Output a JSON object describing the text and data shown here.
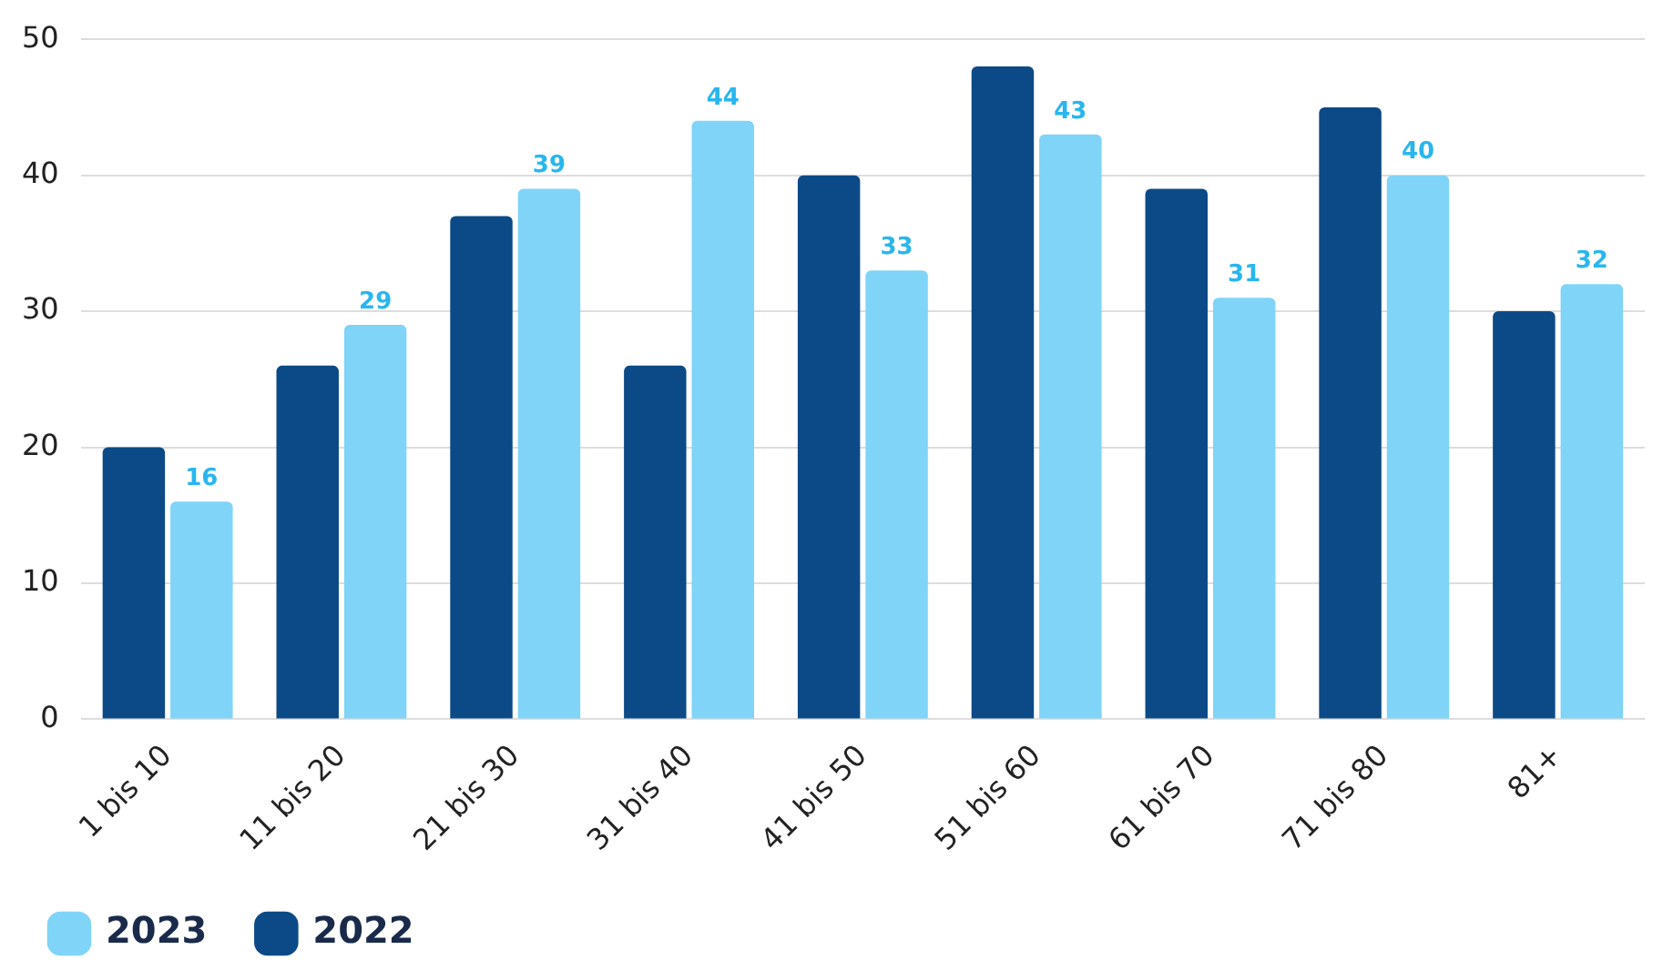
{
  "chart_data": {
    "type": "bar",
    "categories": [
      "1 bis 10",
      "11 bis 20",
      "21 bis 30",
      "31 bis 40",
      "41 bis 50",
      "51 bis 60",
      "61 bis 70",
      "71 bis 80",
      "81+"
    ],
    "series": [
      {
        "name": "2022",
        "color": "#0b4a86",
        "values": [
          20,
          26,
          37,
          26,
          40,
          48,
          39,
          45,
          30
        ]
      },
      {
        "name": "2023",
        "color": "#7fd4f8",
        "values": [
          16,
          29,
          39,
          44,
          33,
          43,
          31,
          40,
          32
        ],
        "value_labels": [
          "16",
          "29",
          "39",
          "44",
          "33",
          "43",
          "31",
          "40",
          "32"
        ]
      }
    ],
    "ylim": [
      0,
      50
    ],
    "yticks": [
      0,
      10,
      20,
      30,
      40,
      50
    ],
    "grid": "y",
    "legend": "bottom left"
  }
}
